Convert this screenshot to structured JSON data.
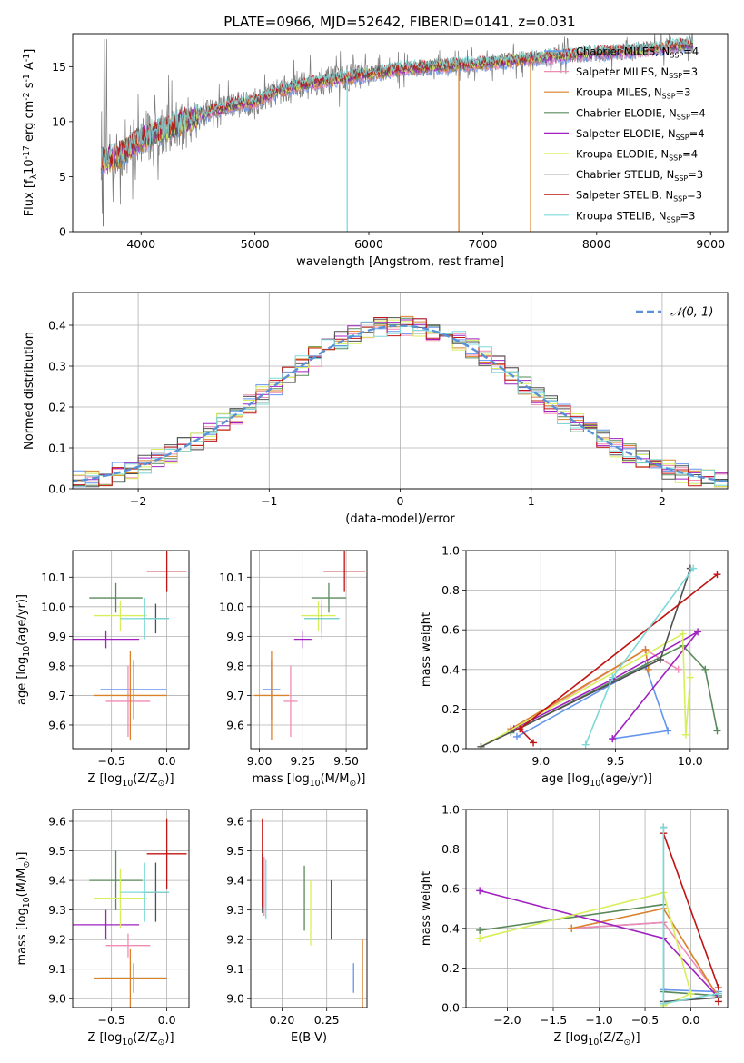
{
  "title": "PLATE=0966, MJD=52642, FIBERID=0141, z=0.031",
  "models": [
    {
      "label": "Chabrier MILES, N$_{SSP}$=4",
      "text": "Chabrier MILES, N",
      "n": "4",
      "color": "#6495ed"
    },
    {
      "label": "Salpeter MILES",
      "text": "Salpeter MILES, N",
      "n": "3",
      "color": "#f08cb4"
    },
    {
      "label": "Kroupa MILES",
      "text": "Kroupa MILES, N",
      "n": "3",
      "color": "#d9822b"
    },
    {
      "label": "Chabrier ELODIE",
      "text": "Chabrier ELODIE, N",
      "n": "4",
      "color": "#5a8a5a"
    },
    {
      "label": "Salpeter ELODIE",
      "text": "Salpeter ELODIE, N",
      "n": "4",
      "color": "#a020c0"
    },
    {
      "label": "Kroupa ELODIE",
      "text": "Kroupa ELODIE, N",
      "n": "4",
      "color": "#d8ee5a"
    },
    {
      "label": "Chabrier STELIB",
      "text": "Chabrier STELIB, N",
      "n": "3",
      "color": "#505050"
    },
    {
      "label": "Salpeter STELIB",
      "text": "Salpeter STELIB, N",
      "n": "3",
      "color": "#c01414"
    },
    {
      "label": "Kroupa STELIB",
      "text": "Kroupa STELIB, N",
      "n": "3",
      "color": "#7fd8d8"
    }
  ],
  "legend_sub": "SSP",
  "chart_data": [
    {
      "id": "spectrum",
      "type": "line",
      "xlabel": "wavelength [Angstrom, rest frame]",
      "ylabel": "Flux [f$_\\lambda$10$^{-17}$ erg cm$^{-2}$ s$^{-1}$ A$^{-1}$]",
      "xlim": [
        3400,
        9150
      ],
      "ylim": [
        0,
        18
      ],
      "xticks": [
        4000,
        5000,
        6000,
        7000,
        8000,
        9000
      ],
      "yticks": [
        0,
        5,
        10,
        15
      ],
      "grid": false,
      "legend": "upper right",
      "continuum": [
        [
          3650,
          6.5
        ],
        [
          3800,
          6.8
        ],
        [
          4000,
          8.5
        ],
        [
          4200,
          9.2
        ],
        [
          4500,
          10.5
        ],
        [
          4800,
          11.5
        ],
        [
          5000,
          11.8
        ],
        [
          5200,
          12.8
        ],
        [
          5500,
          13.5
        ],
        [
          5800,
          14.0
        ],
        [
          6000,
          14.3
        ],
        [
          6300,
          14.8
        ],
        [
          6600,
          15.0
        ],
        [
          7000,
          15.3
        ],
        [
          7500,
          15.8
        ],
        [
          8000,
          16.2
        ],
        [
          8500,
          16.6
        ],
        [
          8800,
          17.0
        ]
      ],
      "model_dropouts": [
        [
          5810,
          0
        ],
        [
          6790,
          0
        ],
        [
          7420,
          0
        ]
      ]
    },
    {
      "id": "residuals",
      "type": "histogram",
      "xlabel": "(data-model)/error",
      "ylabel": "Normed distribution",
      "xlim": [
        -2.5,
        2.5
      ],
      "ylim": [
        0,
        0.48
      ],
      "xticks": [
        -2,
        -1,
        0,
        1,
        2
      ],
      "yticks": [
        0.0,
        0.1,
        0.2,
        0.3,
        0.4
      ],
      "grid": true,
      "legend": "upper right",
      "reference_label": "$\\mathcal{N}(0,1)$",
      "reference_text": "𝒩(0, 1)",
      "bin_width": 0.1
    },
    {
      "id": "z-age",
      "type": "errorbar",
      "xlabel": "Z [log$_{10}$(Z/Z$_\\odot$)]",
      "ylabel": "age  [log$_{10}$(age/yr)]",
      "xlim": [
        -0.85,
        0.2
      ],
      "ylim": [
        9.52,
        10.19
      ],
      "xticks": [
        -0.5,
        0.0
      ],
      "yticks": [
        9.6,
        9.7,
        9.8,
        9.9,
        10.0,
        10.1
      ],
      "points": [
        {
          "x": -0.3,
          "xe": 0.3,
          "y": 9.72,
          "ye": 0.1
        },
        {
          "x": -0.35,
          "xe": 0.2,
          "y": 9.68,
          "ye": 0.12
        },
        {
          "x": -0.33,
          "xe": 0.33,
          "y": 9.7,
          "ye": 0.15
        },
        {
          "x": -0.46,
          "xe": 0.24,
          "y": 10.03,
          "ye": 0.05
        },
        {
          "x": -0.55,
          "xe": 0.3,
          "y": 9.89,
          "ye": 0.03
        },
        {
          "x": -0.42,
          "xe": 0.24,
          "y": 9.97,
          "ye": 0.05
        },
        {
          "x": -0.1,
          "xe": 0.12,
          "y": 9.96,
          "ye": 0.05
        },
        {
          "x": 0.0,
          "xe": 0.18,
          "y": 10.12,
          "ye": 0.07
        },
        {
          "x": -0.2,
          "xe": 0.22,
          "y": 9.96,
          "ye": 0.07
        }
      ]
    },
    {
      "id": "mass-age",
      "type": "errorbar",
      "xlabel": "mass [log$_{10}$(M/M$_\\odot$)]",
      "ylabel": "",
      "xlim": [
        8.95,
        9.62
      ],
      "ylim": [
        9.52,
        10.19
      ],
      "xticks": [
        9.0,
        9.25,
        9.5
      ],
      "yticks": [
        9.6,
        9.7,
        9.8,
        9.9,
        10.0,
        10.1
      ],
      "points": [
        {
          "x": 9.07,
          "xe": 0.05,
          "y": 9.72,
          "ye": 0.1
        },
        {
          "x": 9.18,
          "xe": 0.04,
          "y": 9.68,
          "ye": 0.12
        },
        {
          "x": 9.07,
          "xe": 0.1,
          "y": 9.7,
          "ye": 0.15
        },
        {
          "x": 9.4,
          "xe": 0.1,
          "y": 10.03,
          "ye": 0.05
        },
        {
          "x": 9.25,
          "xe": 0.05,
          "y": 9.89,
          "ye": 0.03
        },
        {
          "x": 9.34,
          "xe": 0.1,
          "y": 9.97,
          "ye": 0.05
        },
        {
          "x": 9.36,
          "xe": 0.1,
          "y": 9.96,
          "ye": 0.05
        },
        {
          "x": 9.49,
          "xe": 0.12,
          "y": 10.12,
          "ye": 0.07
        },
        {
          "x": 9.36,
          "xe": 0.1,
          "y": 9.96,
          "ye": 0.07
        }
      ]
    },
    {
      "id": "age-weight",
      "type": "line",
      "xlabel": "age  [log$_{10}$(age/yr)]",
      "ylabel": "mass weight",
      "xlim": [
        8.5,
        10.25
      ],
      "ylim": [
        0,
        1
      ],
      "xticks": [
        9.0,
        9.5,
        10.0
      ],
      "yticks": [
        0.0,
        0.2,
        0.4,
        0.6,
        0.8,
        1.0
      ],
      "series": [
        {
          "x": [
            8.84,
            9.7,
            9.85,
            9.48
          ],
          "y": [
            0.06,
            0.42,
            0.09,
            0.05
          ]
        },
        {
          "x": [
            8.8,
            9.7,
            9.92
          ],
          "y": [
            0.09,
            0.5,
            0.4
          ]
        },
        {
          "x": [
            8.8,
            9.7,
            9.72
          ],
          "y": [
            0.1,
            0.5,
            0.4
          ]
        },
        {
          "x": [
            8.8,
            9.95,
            10.1,
            10.18
          ],
          "y": [
            0.08,
            0.52,
            0.4,
            0.09
          ]
        },
        {
          "x": [
            8.82,
            9.48,
            10.05,
            9.48
          ],
          "y": [
            0.1,
            0.35,
            0.59,
            0.05
          ]
        },
        {
          "x": [
            8.6,
            9.95,
            9.97,
            10.0
          ],
          "y": [
            0.01,
            0.58,
            0.07,
            0.36
          ]
        },
        {
          "x": [
            8.6,
            9.8,
            10.0
          ],
          "y": [
            0.01,
            0.45,
            0.91
          ]
        },
        {
          "x": [
            8.95,
            8.86,
            10.18
          ],
          "y": [
            0.03,
            0.1,
            0.88
          ]
        },
        {
          "x": [
            9.3,
            9.48,
            10.02
          ],
          "y": [
            0.02,
            0.36,
            0.91
          ]
        }
      ]
    },
    {
      "id": "z-mass",
      "type": "errorbar",
      "xlabel": "Z [log$_{10}$(Z/Z$_\\odot$)]",
      "ylabel": "mass [log$_{10}$(M/M$_\\odot$)]",
      "xlim": [
        -0.85,
        0.2
      ],
      "ylim": [
        8.97,
        9.64
      ],
      "xticks": [
        -0.5,
        0.0
      ],
      "yticks": [
        9.0,
        9.1,
        9.2,
        9.3,
        9.4,
        9.5,
        9.6
      ],
      "points": [
        {
          "x": -0.3,
          "xe": 0.3,
          "y": 9.07,
          "ye": 0.05
        },
        {
          "x": -0.35,
          "xe": 0.2,
          "y": 9.18,
          "ye": 0.04
        },
        {
          "x": -0.33,
          "xe": 0.33,
          "y": 9.07,
          "ye": 0.1
        },
        {
          "x": -0.46,
          "xe": 0.24,
          "y": 9.4,
          "ye": 0.1
        },
        {
          "x": -0.55,
          "xe": 0.3,
          "y": 9.25,
          "ye": 0.05
        },
        {
          "x": -0.42,
          "xe": 0.24,
          "y": 9.34,
          "ye": 0.1
        },
        {
          "x": -0.1,
          "xe": 0.12,
          "y": 9.36,
          "ye": 0.1
        },
        {
          "x": 0.0,
          "xe": 0.18,
          "y": 9.49,
          "ye": 0.12
        },
        {
          "x": -0.2,
          "xe": 0.22,
          "y": 9.36,
          "ye": 0.1
        }
      ]
    },
    {
      "id": "ebv-mass",
      "type": "errorbar",
      "xlabel": "E(B-V)",
      "ylabel": "",
      "xlim": [
        0.165,
        0.295
      ],
      "ylim": [
        8.97,
        9.64
      ],
      "xticks": [
        0.2,
        0.25
      ],
      "yticks": [
        9.0,
        9.1,
        9.2,
        9.3,
        9.4,
        9.5,
        9.6
      ],
      "points": [
        {
          "x": 0.28,
          "xe": 0,
          "y": 9.07,
          "ye": 0.05
        },
        {
          "x": 0.18,
          "xe": 0,
          "y": 9.38,
          "ye": 0.1
        },
        {
          "x": 0.29,
          "xe": 0,
          "y": 9.07,
          "ye": 0.13
        },
        {
          "x": 0.225,
          "xe": 0,
          "y": 9.34,
          "ye": 0.11
        },
        {
          "x": 0.255,
          "xe": 0,
          "y": 9.3,
          "ye": 0.1
        },
        {
          "x": 0.232,
          "xe": 0,
          "y": 9.29,
          "ye": 0.11
        },
        {
          "x": 0.178,
          "xe": 0,
          "y": 9.39,
          "ye": 0.1
        },
        {
          "x": 0.178,
          "xe": 0,
          "y": 9.46,
          "ye": 0.15
        },
        {
          "x": 0.182,
          "xe": 0,
          "y": 9.37,
          "ye": 0.1
        }
      ]
    },
    {
      "id": "z-weight",
      "type": "line",
      "xlabel": "Z [log$_{10}$(Z/Z$_\\odot$)]",
      "ylabel": "mass weight",
      "xlim": [
        -2.45,
        0.4
      ],
      "ylim": [
        0,
        1
      ],
      "xticks": [
        -2.0,
        -1.5,
        -1.0,
        -0.5,
        0.0
      ],
      "yticks": [
        0.0,
        0.2,
        0.4,
        0.6,
        0.8,
        1.0
      ],
      "series": [
        {
          "x": [
            -1.3,
            -0.3,
            -0.3,
            0.3
          ],
          "y": [
            0.4,
            0.43,
            0.09,
            0.08
          ]
        },
        {
          "x": [
            -1.3,
            -0.3,
            0.3
          ],
          "y": [
            0.4,
            0.43,
            0.06
          ]
        },
        {
          "x": [
            -1.3,
            -0.3,
            0.3
          ],
          "y": [
            0.4,
            0.5,
            0.05
          ]
        },
        {
          "x": [
            -2.3,
            -0.3,
            -0.3,
            0.3
          ],
          "y": [
            0.39,
            0.52,
            0.08,
            0.06
          ]
        },
        {
          "x": [
            -2.3,
            -0.3,
            0.3
          ],
          "y": [
            0.59,
            0.35,
            0.05
          ]
        },
        {
          "x": [
            -2.3,
            -0.3,
            0.0,
            -0.3
          ],
          "y": [
            0.35,
            0.58,
            0.07,
            0.01
          ]
        },
        {
          "x": [
            -0.3,
            -0.3,
            0.3
          ],
          "y": [
            0.91,
            0.03,
            0.05
          ]
        },
        {
          "x": [
            -0.3,
            0.3,
            0.3
          ],
          "y": [
            0.88,
            0.1,
            0.03
          ]
        },
        {
          "x": [
            -0.3,
            -0.3,
            0.3
          ],
          "y": [
            0.91,
            0.02,
            0.07
          ]
        }
      ]
    }
  ]
}
